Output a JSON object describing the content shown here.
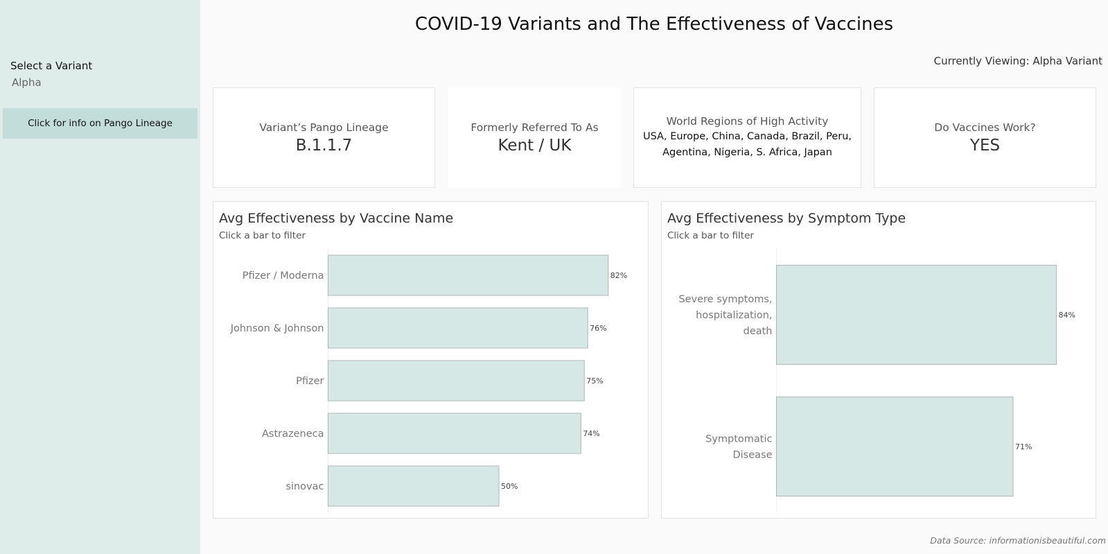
{
  "sidebar": {
    "filter_label": "Select a Variant",
    "filter_value": "Alpha",
    "pango_button_label": "Click for info on Pango Lineage"
  },
  "header": {
    "title": "COVID-19 Variants and The Effectiveness of Vaccines",
    "currently_viewing": "Currently Viewing: Alpha Variant"
  },
  "kpis": [
    {
      "label": "Variant’s Pango Lineage",
      "value": "B.1.1.7"
    },
    {
      "label": "Formerly Referred To As",
      "value": "Kent / UK"
    },
    {
      "label": "World Regions of High Activity",
      "lines": [
        "USA, Europe, China, Canada, Brazil, Peru,",
        "Agentina, Nigeria, S. Africa, Japan"
      ]
    },
    {
      "label": "Do Vaccines Work?",
      "value": "YES"
    }
  ],
  "colors": {
    "sidebar_bg": "#dfedea",
    "button_bg": "#c3deda",
    "bar_fill": "#d5e8e5",
    "bar_stroke": "#aeb6b5"
  },
  "footer": {
    "source": "Data Source: informationisbeautiful.com"
  },
  "chart_data": [
    {
      "type": "bar",
      "orientation": "horizontal",
      "title": "Avg Effectiveness by Vaccine Name",
      "subtitle": "Click a bar to filter",
      "categories": [
        "Pfizer / Moderna",
        "Johnson & Johnson",
        "Pfizer",
        "Astrazeneca",
        "sinovac"
      ],
      "values": [
        82,
        76,
        75,
        74,
        50
      ],
      "value_labels": [
        "82%",
        "76%",
        "75%",
        "74%",
        "50%"
      ],
      "xlabel": "",
      "ylabel": "",
      "xlim": [
        0,
        100
      ],
      "grid": false
    },
    {
      "type": "bar",
      "orientation": "horizontal",
      "title": "Avg Effectiveness by Symptom Type",
      "subtitle": "Click a bar to filter",
      "categories": [
        [
          "Severe symptoms,",
          "hospitalization,",
          "death"
        ],
        [
          "Symptomatic",
          "Disease"
        ]
      ],
      "values": [
        84,
        71
      ],
      "value_labels": [
        "84%",
        "71%"
      ],
      "xlabel": "",
      "ylabel": "",
      "xlim": [
        0,
        100
      ],
      "grid": false
    }
  ]
}
